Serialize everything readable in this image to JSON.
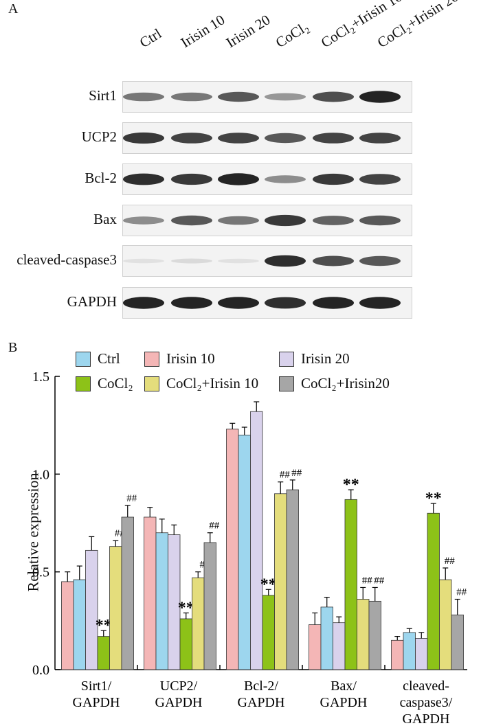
{
  "panel_a": {
    "label": "A",
    "lanes": [
      "Ctrl",
      "Irisin 10",
      "Irisin 20",
      "CoCl₂",
      "CoCl₂+Irisin 10",
      "CoCl₂+Irisin 20"
    ],
    "blots": [
      {
        "name": "Sirt1",
        "intensity": [
          0.55,
          0.55,
          0.7,
          0.4,
          0.75,
          0.95
        ]
      },
      {
        "name": "UCP2",
        "intensity": [
          0.85,
          0.8,
          0.8,
          0.7,
          0.8,
          0.8
        ]
      },
      {
        "name": "Bcl-2",
        "intensity": [
          0.9,
          0.85,
          0.95,
          0.45,
          0.85,
          0.8
        ]
      },
      {
        "name": "Bax",
        "intensity": [
          0.45,
          0.7,
          0.55,
          0.85,
          0.65,
          0.7
        ]
      },
      {
        "name": "cleaved-caspase3",
        "intensity": [
          0.05,
          0.08,
          0.05,
          0.9,
          0.75,
          0.7
        ]
      },
      {
        "name": "GAPDH",
        "intensity": [
          0.95,
          0.95,
          0.95,
          0.9,
          0.95,
          0.95
        ]
      }
    ]
  },
  "panel_b": {
    "label": "B"
  },
  "legend": [
    {
      "label": "Ctrl",
      "color": "#9dd6ee"
    },
    {
      "label": "Irisin 10",
      "color": "#f4b6b6"
    },
    {
      "label": "Irisin 20",
      "color": "#d9d2ec"
    },
    {
      "label": "CoCl₂",
      "color": "#8dc218"
    },
    {
      "label": "CoCl₂+Irisin 10",
      "color": "#e4dd7c"
    },
    {
      "label": "CoCl₂+Irisin20",
      "color": "#a6a6a6"
    }
  ],
  "chart_data": {
    "type": "bar",
    "ylabel": "Relative expression",
    "ylim": [
      0.0,
      1.5
    ],
    "yticks": [
      "0.0",
      "0.5",
      "1.0",
      "1.5"
    ],
    "categories": [
      "Sirt1/\nGAPDH",
      "UCP2/\nGAPDH",
      "Bcl-2/\nGAPDH",
      "Bax/\nGAPDH",
      "cleaved-\ncaspase3/\nGAPDH"
    ],
    "groups": [
      {
        "bars": [
          {
            "color": "#f4b6b6",
            "value": 0.45,
            "err": 0.05,
            "mark": ""
          },
          {
            "color": "#9dd6ee",
            "value": 0.46,
            "err": 0.07,
            "mark": ""
          },
          {
            "color": "#d9d2ec",
            "value": 0.61,
            "err": 0.07,
            "mark": ""
          },
          {
            "color": "#8dc218",
            "value": 0.17,
            "err": 0.03,
            "mark": "**"
          },
          {
            "color": "#e4dd7c",
            "value": 0.63,
            "err": 0.03,
            "mark": "##"
          },
          {
            "color": "#a6a6a6",
            "value": 0.78,
            "err": 0.06,
            "mark": "##"
          }
        ]
      },
      {
        "bars": [
          {
            "color": "#f4b6b6",
            "value": 0.78,
            "err": 0.05,
            "mark": ""
          },
          {
            "color": "#9dd6ee",
            "value": 0.7,
            "err": 0.07,
            "mark": ""
          },
          {
            "color": "#d9d2ec",
            "value": 0.69,
            "err": 0.05,
            "mark": ""
          },
          {
            "color": "#8dc218",
            "value": 0.26,
            "err": 0.03,
            "mark": "**"
          },
          {
            "color": "#e4dd7c",
            "value": 0.47,
            "err": 0.03,
            "mark": "#"
          },
          {
            "color": "#a6a6a6",
            "value": 0.65,
            "err": 0.05,
            "mark": "##"
          }
        ]
      },
      {
        "bars": [
          {
            "color": "#f4b6b6",
            "value": 1.23,
            "err": 0.03,
            "mark": ""
          },
          {
            "color": "#9dd6ee",
            "value": 1.2,
            "err": 0.04,
            "mark": ""
          },
          {
            "color": "#d9d2ec",
            "value": 1.32,
            "err": 0.05,
            "mark": ""
          },
          {
            "color": "#8dc218",
            "value": 0.38,
            "err": 0.03,
            "mark": "**"
          },
          {
            "color": "#e4dd7c",
            "value": 0.9,
            "err": 0.06,
            "mark": "##"
          },
          {
            "color": "#a6a6a6",
            "value": 0.92,
            "err": 0.05,
            "mark": "##"
          }
        ]
      },
      {
        "bars": [
          {
            "color": "#f4b6b6",
            "value": 0.23,
            "err": 0.06,
            "mark": ""
          },
          {
            "color": "#9dd6ee",
            "value": 0.32,
            "err": 0.05,
            "mark": ""
          },
          {
            "color": "#d9d2ec",
            "value": 0.24,
            "err": 0.03,
            "mark": ""
          },
          {
            "color": "#8dc218",
            "value": 0.87,
            "err": 0.05,
            "mark": "**"
          },
          {
            "color": "#e4dd7c",
            "value": 0.36,
            "err": 0.06,
            "mark": "##"
          },
          {
            "color": "#a6a6a6",
            "value": 0.35,
            "err": 0.07,
            "mark": "##"
          }
        ]
      },
      {
        "bars": [
          {
            "color": "#f4b6b6",
            "value": 0.15,
            "err": 0.02,
            "mark": ""
          },
          {
            "color": "#9dd6ee",
            "value": 0.19,
            "err": 0.02,
            "mark": ""
          },
          {
            "color": "#d9d2ec",
            "value": 0.16,
            "err": 0.03,
            "mark": ""
          },
          {
            "color": "#8dc218",
            "value": 0.8,
            "err": 0.05,
            "mark": "**"
          },
          {
            "color": "#e4dd7c",
            "value": 0.46,
            "err": 0.06,
            "mark": "##"
          },
          {
            "color": "#a6a6a6",
            "value": 0.28,
            "err": 0.08,
            "mark": "##"
          }
        ]
      }
    ]
  }
}
